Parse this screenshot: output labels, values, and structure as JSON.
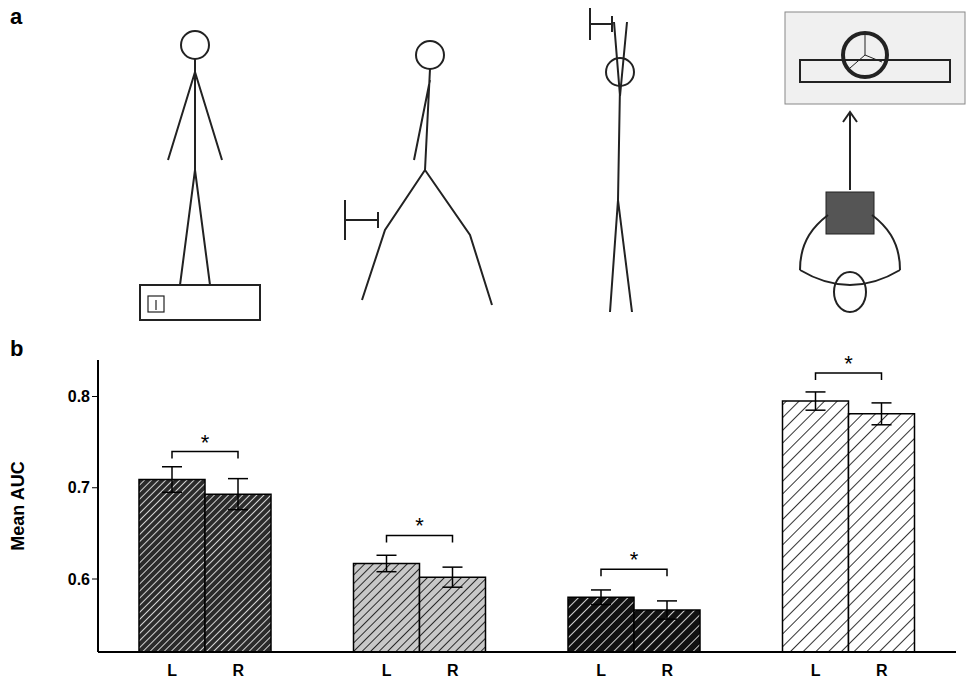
{
  "panel_labels": [
    "a",
    "b"
  ],
  "chart_data": {
    "type": "bar",
    "y_label": "Mean AUC",
    "categories": [
      null,
      null,
      null,
      null
    ],
    "series": [
      {
        "name": "L",
        "values": [
          0.709,
          0.617,
          0.58,
          0.795
        ],
        "errors": [
          0.014,
          0.009,
          0.008,
          0.01
        ],
        "colors": [
          "#2b2b2b",
          "#c8c8c8",
          "#111111",
          "#ffffff"
        ]
      },
      {
        "name": "R",
        "values": [
          0.693,
          0.602,
          0.566,
          0.781
        ],
        "errors": [
          0.017,
          0.011,
          0.01,
          0.012
        ],
        "colors": [
          "#2b2b2b",
          "#c8c8c8",
          "#111111",
          "#ffffff"
        ]
      }
    ],
    "ylim": [
      0.52,
      0.84
    ],
    "yticks": [
      0.6,
      0.7,
      0.8
    ],
    "annotations": [
      {
        "group": 0,
        "text": "*"
      },
      {
        "group": 1,
        "text": "*"
      },
      {
        "group": 2,
        "text": "*"
      },
      {
        "group": 3,
        "text": "*"
      }
    ],
    "grid": false
  }
}
